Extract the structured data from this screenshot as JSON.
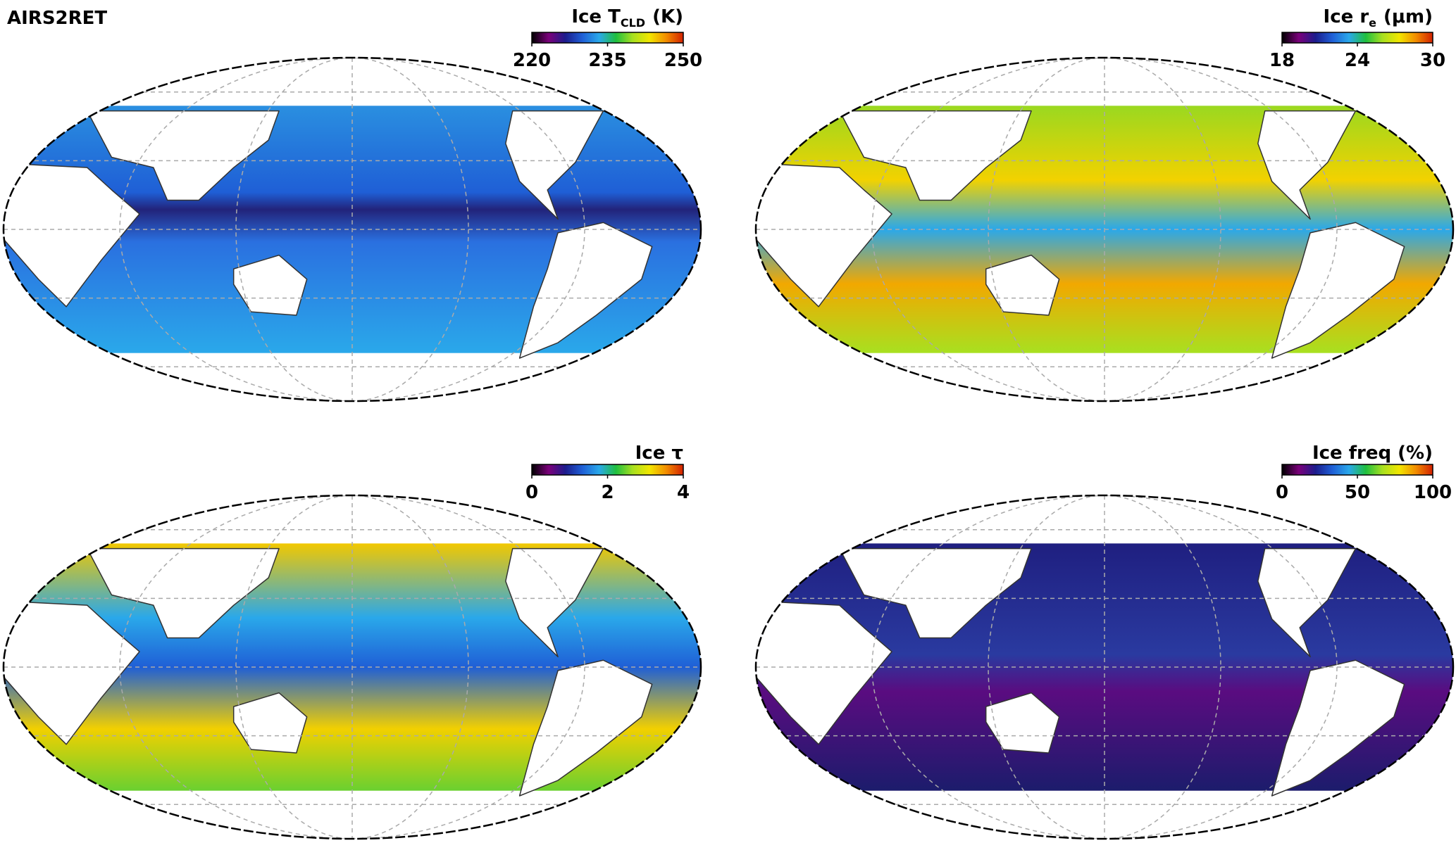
{
  "title": "AIRS2RET",
  "colormap": [
    "#000000",
    "#7a007a",
    "#1c1c8c",
    "#1f5fd6",
    "#2aa8ea",
    "#1fbf3f",
    "#a8e020",
    "#f2e600",
    "#f28c00",
    "#d22000"
  ],
  "panels": [
    {
      "title": "Ice T",
      "title_sub": "CLD",
      "title_unit": "(K)",
      "colorbar_ticks": [
        220,
        235,
        250
      ]
    },
    {
      "title": "Ice r",
      "title_sub": "e",
      "title_unit": "(μm)",
      "colorbar_ticks": [
        18,
        24,
        30
      ]
    },
    {
      "title": "Ice τ",
      "colorbar_ticks": [
        0,
        2,
        4
      ]
    },
    {
      "title": "Ice freq (%)",
      "colorbar_ticks": [
        0,
        50,
        100
      ]
    }
  ]
}
